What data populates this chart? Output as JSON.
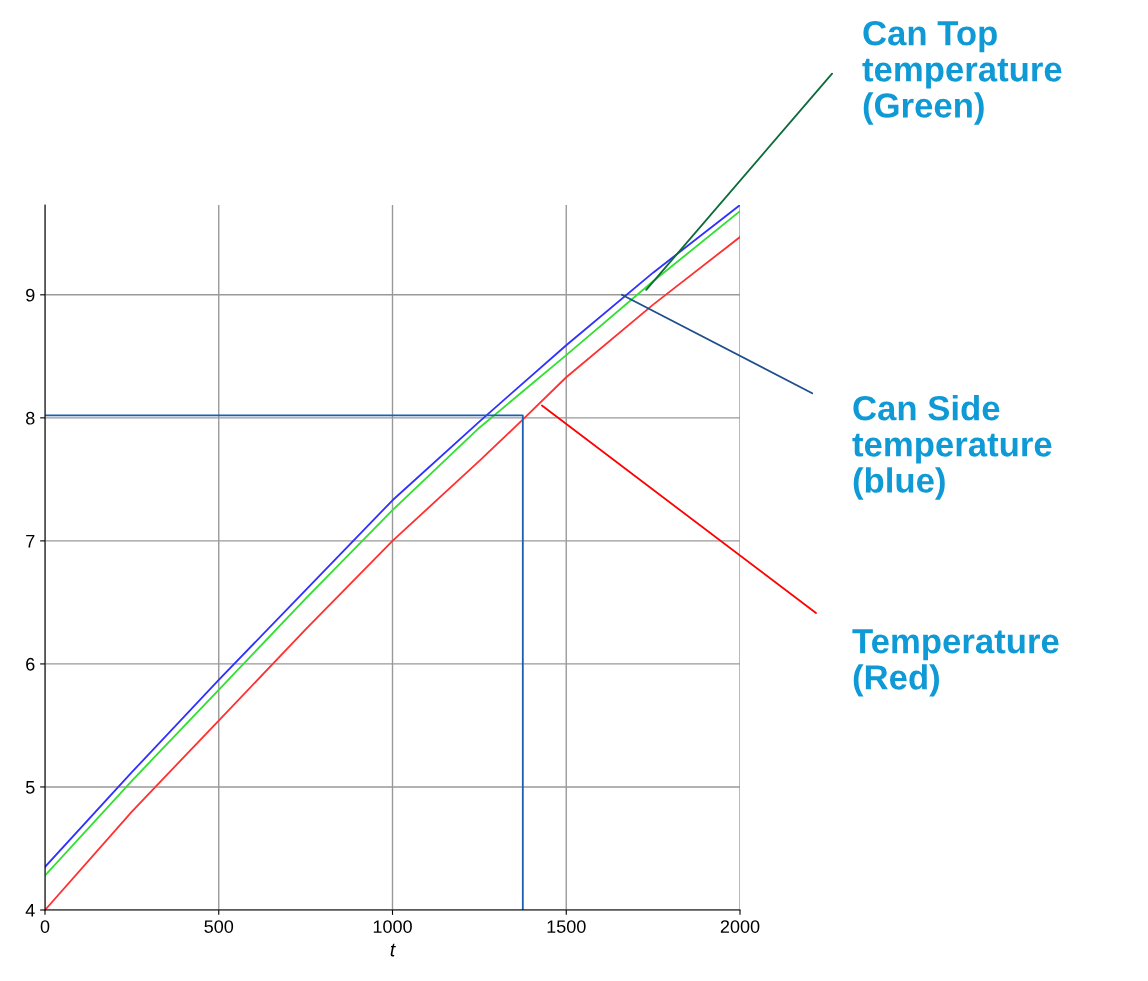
{
  "chart_data": {
    "type": "line",
    "xlabel": "t",
    "xlim": [
      0,
      2000
    ],
    "xticks": [
      0,
      500,
      1000,
      1500,
      2000
    ],
    "ylim": [
      4,
      9.73
    ],
    "yticks": [
      4,
      5,
      6,
      7,
      8,
      9
    ],
    "grid": true,
    "marker": "none",
    "line_style": "solid",
    "series": [
      {
        "color": "#3030ff",
        "x": [
          0,
          250,
          500,
          750,
          1000,
          1250,
          1500,
          1750,
          2000
        ],
        "values": [
          4.35,
          5.12,
          5.87,
          6.6,
          7.33,
          7.97,
          8.59,
          9.18,
          9.73
        ]
      },
      {
        "color": "#30e030",
        "x": [
          0,
          250,
          500,
          750,
          1000,
          1250,
          1500,
          1750,
          2000
        ],
        "values": [
          4.28,
          5.05,
          5.79,
          6.53,
          7.25,
          7.92,
          8.51,
          9.11,
          9.68
        ]
      },
      {
        "color": "#ff3030",
        "x": [
          0,
          250,
          500,
          750,
          1000,
          1250,
          1380,
          1500,
          1750,
          2000
        ],
        "values": [
          4.0,
          4.8,
          5.54,
          6.28,
          7.0,
          7.65,
          8.0,
          8.33,
          8.92,
          9.47
        ]
      },
      {
        "color": "#1a5fb4",
        "x": [
          0,
          1375,
          1375
        ],
        "values": [
          8.02,
          8.02,
          4
        ]
      }
    ],
    "annotations": [
      {
        "text": "Can Top\ntemperature\n(Green)",
        "x": 1730,
        "y": 9.04
      },
      {
        "text": "Can Side\ntemperature\n(blue)",
        "x": 1660,
        "y": 9.0
      },
      {
        "text": "Temperature\n(Red)",
        "x": 1430,
        "y": 8.1
      }
    ]
  }
}
